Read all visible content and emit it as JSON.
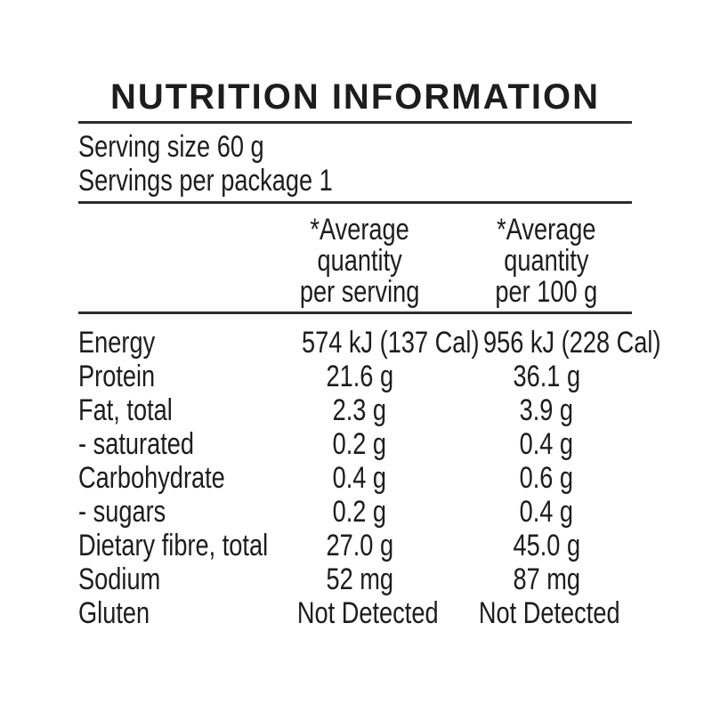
{
  "panel": {
    "title": "NUTRITION INFORMATION",
    "serving_lines": [
      "Serving size 60 g",
      "Servings per package 1"
    ],
    "columns": {
      "per_serving": "*Average\nquantity\nper serving",
      "per_100g": "*Average\nquantity\nper 100 g"
    },
    "rows": [
      {
        "label": "Energy",
        "per_serving": "574 kJ (137 Cal)",
        "per_100g": "956 kJ (228 Cal)"
      },
      {
        "label": "Protein",
        "per_serving": "21.6 g",
        "per_100g": "36.1 g"
      },
      {
        "label": "Fat, total",
        "per_serving": "2.3 g",
        "per_100g": "3.9 g"
      },
      {
        "label": "- saturated",
        "per_serving": "0.2 g",
        "per_100g": "0.4 g"
      },
      {
        "label": "Carbohydrate",
        "per_serving": "0.4 g",
        "per_100g": "0.6 g"
      },
      {
        "label": "- sugars",
        "per_serving": "0.2 g",
        "per_100g": "0.4 g"
      },
      {
        "label": "Dietary fibre, total",
        "per_serving": "27.0 g",
        "per_100g": "45.0 g"
      },
      {
        "label": "Sodium",
        "per_serving": "52 mg",
        "per_100g": "87 mg"
      },
      {
        "label": "Gluten",
        "per_serving": "Not Detected",
        "per_100g": "Not Detected"
      }
    ],
    "colors": {
      "text": "#1d1d1d",
      "rule": "#2e2e2e",
      "background": "#ffffff"
    }
  }
}
